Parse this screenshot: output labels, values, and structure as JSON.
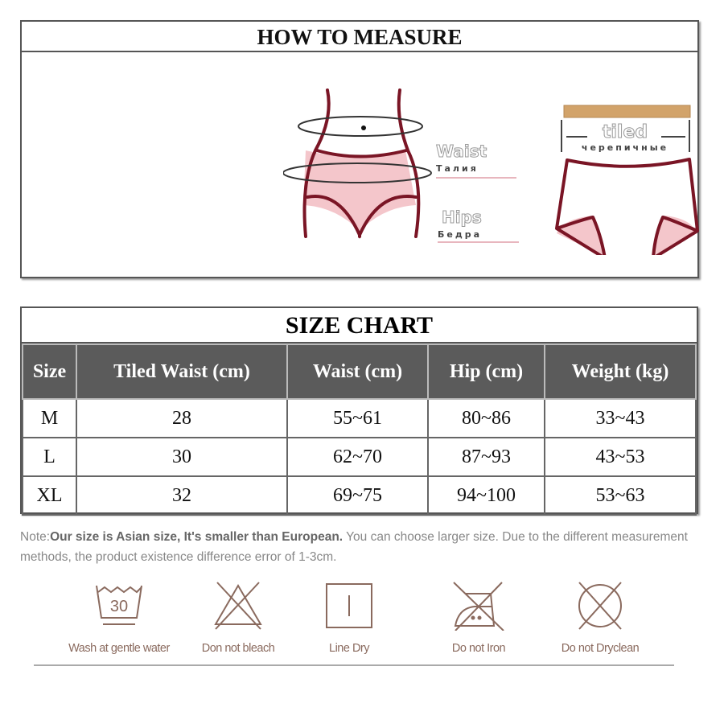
{
  "measure": {
    "title": "HOW TO MEASURE",
    "waist_label": "Waist",
    "waist_label_ru": "Талия",
    "hips_label": "Hips",
    "hips_label_ru": "Бедра",
    "tiled_label": "tiled",
    "tiled_label_ru": "черепичные"
  },
  "size_chart": {
    "title": "SIZE CHART",
    "headers": [
      "Size",
      "Tiled Waist (cm)",
      "Waist (cm)",
      "Hip (cm)",
      "Weight (kg)"
    ],
    "rows": [
      [
        "M",
        "28",
        "55~61",
        "80~86",
        "33~43"
      ],
      [
        "L",
        "30",
        "62~70",
        "87~93",
        "43~53"
      ],
      [
        "XL",
        "32",
        "69~75",
        "94~100",
        "53~63"
      ]
    ]
  },
  "note": {
    "prefix": "Note:",
    "bold": "Our size is Asian size, It's smaller than European.",
    "rest": " You can choose larger size. Due to the different measurement methods, the product existence difference error of 1-3cm."
  },
  "care": [
    {
      "icon": "wash-30-icon",
      "label": "Wash at gentle water",
      "temp": "30"
    },
    {
      "icon": "no-bleach-icon",
      "label": "Don not bleach"
    },
    {
      "icon": "line-dry-icon",
      "label": "Line Dry"
    },
    {
      "icon": "no-iron-icon",
      "label": "Do not Iron"
    },
    {
      "icon": "no-dryclean-icon",
      "label": "Do not Dryclean"
    }
  ],
  "colors": {
    "outline": "#7a1525",
    "fill": "#f4c6cb",
    "header_bg": "#5b5b5b",
    "care": "#8a6a5e"
  }
}
